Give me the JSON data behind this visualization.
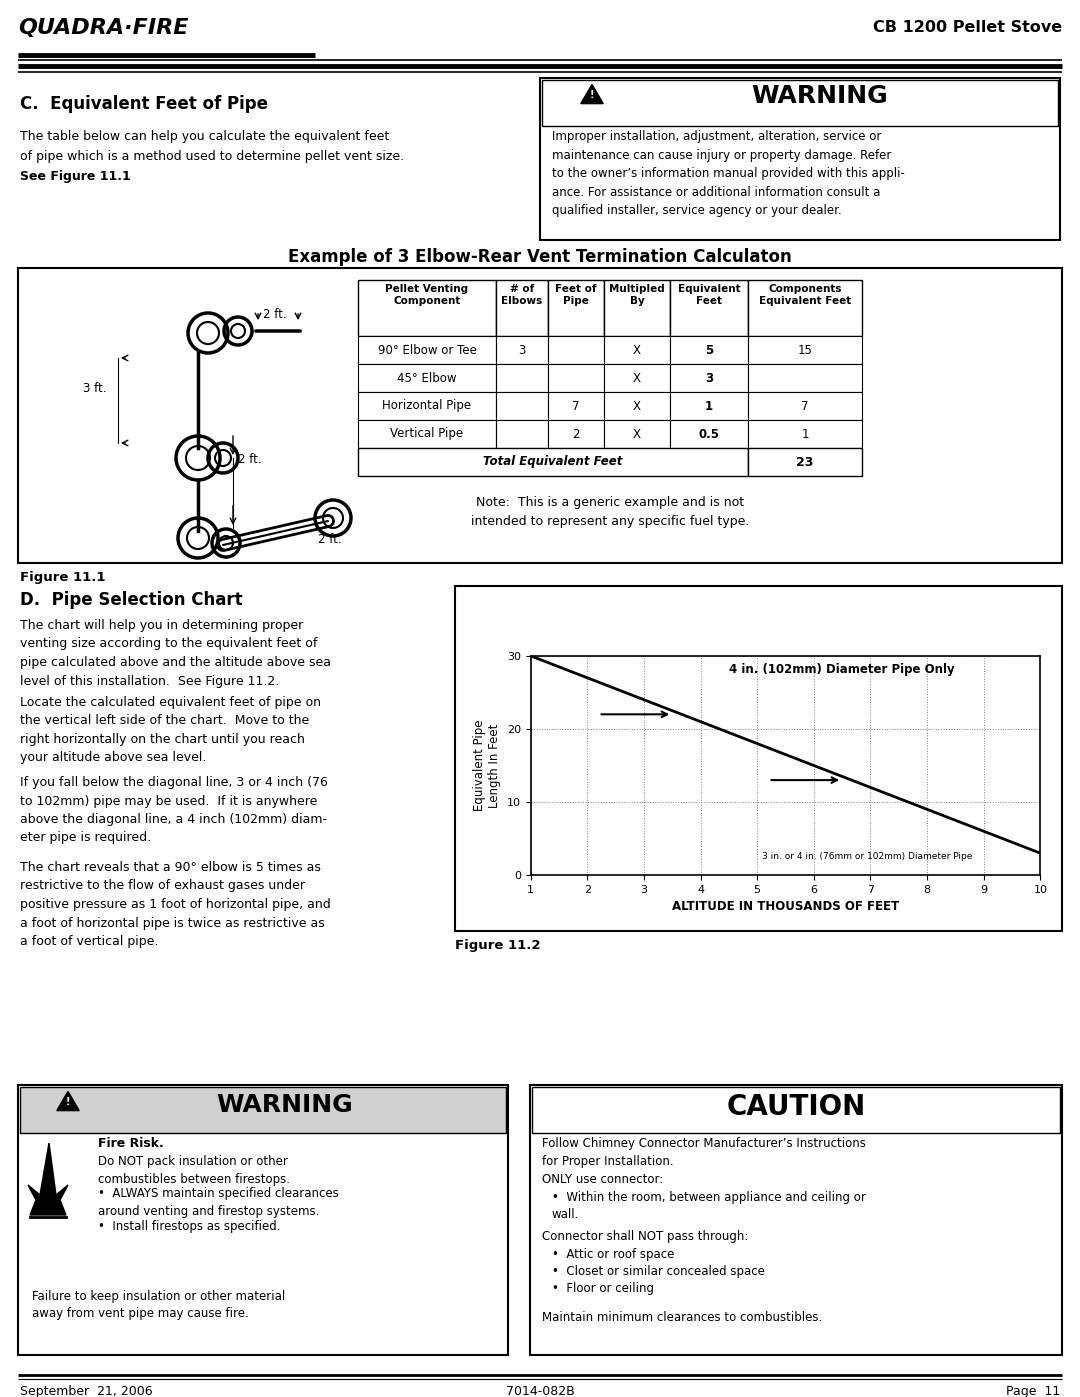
{
  "page_title_right": "CB 1200 Pellet Stove",
  "section_c_title": "C.  Equivalent Feet of Pipe",
  "section_c_body1": "The table below can help you calculate the equivalent feet",
  "section_c_body2": "of pipe which is a method used to determine pellet vent size.",
  "section_c_body3": "See Figure 11.1",
  "warning_title": "WARNING",
  "warning_body": "Improper installation, adjustment, alteration, service or\nmaintenance can cause injury or property damage. Refer\nto the owner’s information manual provided with this appli-\nance. For assistance or additional information consult a\nqualified installer, service agency or your dealer.",
  "example_title": "Example of 3 Elbow-Rear Vent Termination Calculaton",
  "table_headers": [
    "Pellet Venting\nComponent",
    "# of\nElbows",
    "Feet of\nPipe",
    "Multipled\nBy",
    "Equivalent\nFeet",
    "Components\nEquivalent Feet"
  ],
  "table_rows": [
    [
      "90° Elbow or Tee",
      "3",
      "",
      "X",
      "5",
      "15"
    ],
    [
      "45° Elbow",
      "",
      "",
      "X",
      "3",
      ""
    ],
    [
      "Horizontal Pipe",
      "",
      "7",
      "X",
      "1",
      "7"
    ],
    [
      "Vertical Pipe",
      "",
      "2",
      "X",
      "0.5",
      "1"
    ]
  ],
  "table_total_label": "Total Equivalent Feet",
  "table_total_value": "23",
  "note_text": "Note:  This is a generic example and is not\nintended to represent any specific fuel type.",
  "figure_11_1_label": "Figure 11.1",
  "section_d_title": "D.  Pipe Selection Chart",
  "section_d_body1": "The chart will help you in determining proper\nventing size according to the equivalent feet of\npipe calculated above and the altitude above sea\nlevel of this installation.  See Figure 11.2.",
  "section_d_body2": "Locate the calculated equivalent feet of pipe on\nthe vertical left side of the chart.  Move to the\nright horizontally on the chart until you reach\nyour altitude above sea level.",
  "section_d_body3": "If you fall below the diagonal line, 3 or 4 inch (76\nto 102mm) pipe may be used.  If it is anywhere\nabove the diagonal line, a 4 inch (102mm) diam-\neter pipe is required.",
  "section_d_body4": "The chart reveals that a 90° elbow is 5 times as\nrestrictive to the flow of exhaust gases under\npositive pressure as 1 foot of horizontal pipe, and\na foot of horizontal pipe is twice as restrictive as\na foot of vertical pipe.",
  "chart_title": "4 in. (102mm) Diameter Pipe Only",
  "chart_xlabel": "ALTITUDE IN THOUSANDS OF FEET",
  "chart_ylabel": "Equivalent Pipe\nLength In Feet",
  "chart_ylabel2": "3 in. or 4 in. (76mm or 102mm) Diameter Pipe",
  "figure_11_2_label": "Figure 11.2",
  "warning2_title": "WARNING",
  "warning2_fire": "Fire Risk.",
  "warning2_body1": "Do NOT pack insulation or other\ncombustibles between firestops.",
  "warning2_bullet1": "ALWAYS maintain specified clearances\naround venting and firestop systems.",
  "warning2_bullet2": "Install firestops as specified.",
  "warning2_body2": "Failure to keep insulation or other material\naway from vent pipe may cause fire.",
  "caution_title": "CAUTION",
  "caution_body1": "Follow Chimney Connector Manufacturer’s Instructions\nfor Proper Installation.",
  "caution_body2": "ONLY use connector:",
  "caution_bullet1": "Within the room, between appliance and ceiling or\nwall.",
  "caution_body3": "Connector shall NOT pass through:",
  "caution_bullet2": "Attic or roof space",
  "caution_bullet3": "Closet or similar concealed space",
  "caution_bullet4": "Floor or ceiling",
  "caution_body4": "Maintain minimum clearances to combustibles.",
  "footer_left": "September  21, 2006",
  "footer_center": "7014-082B",
  "footer_right": "Page  11"
}
